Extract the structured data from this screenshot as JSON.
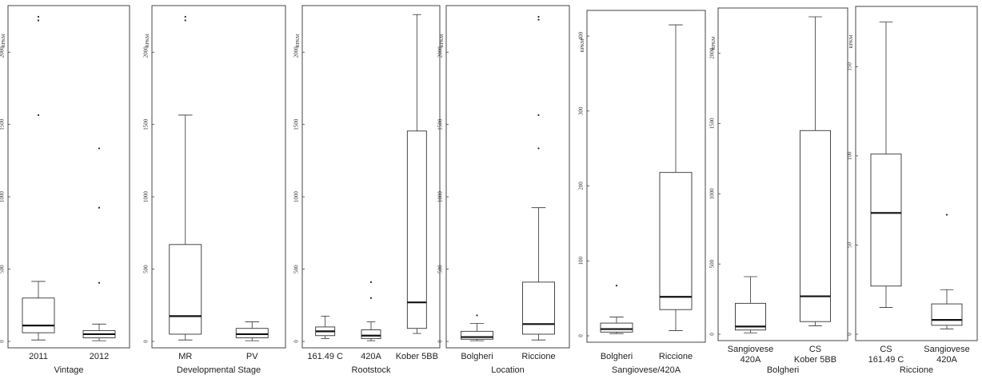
{
  "chart_data": [
    {
      "type": "box",
      "title": "Vintage",
      "ylabel": "RPKM",
      "ylim": [
        0,
        2300
      ],
      "yticks": [
        0,
        500,
        1000,
        1500,
        2000
      ],
      "categories": [
        "2011",
        "2012"
      ],
      "boxes": [
        {
          "whisker_low": 10,
          "q1": 60,
          "median": 110,
          "q3": 300,
          "whisker_high": 415,
          "outliers": [
            1565,
            2220,
            2245
          ]
        },
        {
          "whisker_low": 5,
          "q1": 25,
          "median": 50,
          "q3": 75,
          "whisker_high": 120,
          "outliers": [
            405,
            925,
            1335
          ]
        }
      ]
    },
    {
      "type": "box",
      "title": "Developmental Stage",
      "ylabel": "RPKM",
      "ylim": [
        0,
        2300
      ],
      "yticks": [
        0,
        500,
        1000,
        1500,
        2000
      ],
      "categories": [
        "MR",
        "PV"
      ],
      "boxes": [
        {
          "whisker_low": 10,
          "q1": 50,
          "median": 175,
          "q3": 670,
          "whisker_high": 1565,
          "outliers": [
            2220,
            2245
          ]
        },
        {
          "whisker_low": 5,
          "q1": 25,
          "median": 50,
          "q3": 90,
          "whisker_high": 135,
          "outliers": []
        }
      ]
    },
    {
      "type": "box",
      "title": "Rootstock",
      "ylabel": "RPKM",
      "ylim": [
        0,
        2300
      ],
      "yticks": [
        0,
        500,
        1000,
        1500,
        2000
      ],
      "categories": [
        "161.49 C",
        "420A",
        "Kober 5BB"
      ],
      "boxes": [
        {
          "whisker_low": 20,
          "q1": 40,
          "median": 70,
          "q3": 100,
          "whisker_high": 175,
          "outliers": []
        },
        {
          "whisker_low": 5,
          "q1": 20,
          "median": 40,
          "q3": 80,
          "whisker_high": 135,
          "outliers": [
            300,
            410
          ]
        },
        {
          "whisker_low": 55,
          "q1": 90,
          "median": 270,
          "q3": 1455,
          "whisker_high": 2260,
          "outliers": []
        }
      ]
    },
    {
      "type": "box",
      "title": "Location",
      "ylabel": "RPKM",
      "ylim": [
        0,
        2300
      ],
      "yticks": [
        0,
        500,
        1000,
        1500,
        2000
      ],
      "categories": [
        "Bolgheri",
        "Riccione"
      ],
      "boxes": [
        {
          "whisker_low": 5,
          "q1": 15,
          "median": 30,
          "q3": 70,
          "whisker_high": 125,
          "outliers": [
            180
          ]
        },
        {
          "whisker_low": 10,
          "q1": 50,
          "median": 120,
          "q3": 410,
          "whisker_high": 925,
          "outliers": [
            1335,
            1565,
            2225,
            2245
          ]
        }
      ]
    },
    {
      "type": "box",
      "title": "Sangiovese/420A",
      "ylabel": "RPKM",
      "ylim": [
        0,
        430
      ],
      "yticks": [
        0,
        100,
        200,
        300,
        400
      ],
      "categories": [
        "Bolgheri",
        "Riccione"
      ],
      "boxes": [
        {
          "whisker_low": 3,
          "q1": 5,
          "median": 9,
          "q3": 17,
          "whisker_high": 25,
          "outliers": [
            67
          ]
        },
        {
          "whisker_low": 7,
          "q1": 35,
          "median": 52,
          "q3": 218,
          "whisker_high": 415,
          "outliers": []
        }
      ]
    },
    {
      "type": "box",
      "title": "Bolgheri",
      "ylabel": "RPKM",
      "ylim": [
        0,
        2300
      ],
      "yticks": [
        0,
        500,
        1000,
        1500,
        2000
      ],
      "categories": [
        [
          "Sangiovese",
          "420A"
        ],
        [
          "CS",
          "Kober 5BB"
        ]
      ],
      "boxes": [
        {
          "whisker_low": 10,
          "q1": 30,
          "median": 55,
          "q3": 220,
          "whisker_high": 410,
          "outliers": []
        },
        {
          "whisker_low": 60,
          "q1": 90,
          "median": 270,
          "q3": 1450,
          "whisker_high": 2260,
          "outliers": []
        }
      ]
    },
    {
      "type": "box",
      "title": "Riccione",
      "ylabel": "RPKM",
      "ylim": [
        0,
        182
      ],
      "yticks": [
        0,
        50,
        100,
        150
      ],
      "categories": [
        [
          "CS",
          "161.49 C"
        ],
        [
          "Sangiovese",
          "420A"
        ]
      ],
      "boxes": [
        {
          "whisker_low": 15,
          "q1": 27,
          "median": 68,
          "q3": 101,
          "whisker_high": 175,
          "outliers": []
        },
        {
          "whisker_low": 3,
          "q1": 5,
          "median": 8,
          "q3": 17,
          "whisker_high": 25,
          "outliers": [
            67
          ]
        }
      ]
    }
  ]
}
